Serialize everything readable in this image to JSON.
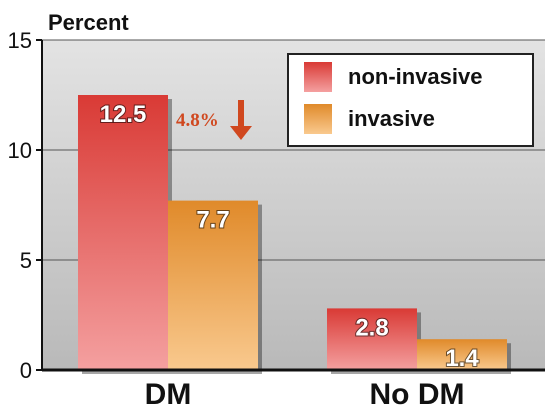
{
  "chart_data": {
    "type": "bar",
    "ylabel": "Percent",
    "ylim": [
      0,
      15
    ],
    "yticks": [
      0,
      5,
      10,
      15
    ],
    "grid": true,
    "legend_position": "top-right",
    "categories": [
      "DM",
      "No DM"
    ],
    "series": [
      {
        "name": "non-invasive",
        "values": [
          12.5,
          2.8
        ],
        "labels": [
          "12.5",
          "2.8"
        ],
        "color": "#d93a35",
        "color_light": "#f4a0a0"
      },
      {
        "name": "invasive",
        "values": [
          7.7,
          1.4
        ],
        "labels": [
          "7.7",
          "1.4"
        ],
        "color": "#e08a2a",
        "color_light": "#f9c98e"
      }
    ],
    "annotation": {
      "text": "4.8%",
      "color": "#d0481f"
    }
  }
}
